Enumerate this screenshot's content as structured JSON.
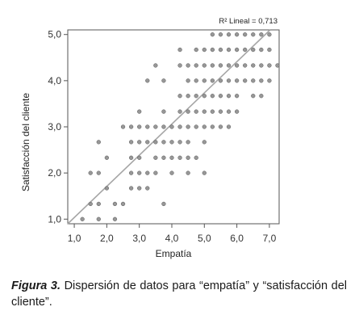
{
  "chart_data": {
    "type": "scatter",
    "xlabel": "Empatía",
    "ylabel": "Satisfacción del cliente",
    "xlim": [
      0.8,
      7.3
    ],
    "ylim": [
      0.9,
      5.1
    ],
    "x_ticks": [
      "1,0",
      "2,0",
      "3,0",
      "4,0",
      "5,0",
      "6,0",
      "7,0"
    ],
    "x_tick_values": [
      1,
      2,
      3,
      4,
      5,
      6,
      7
    ],
    "y_ticks": [
      "1,0",
      "2,0",
      "3,0",
      "4,0",
      "5,0"
    ],
    "y_tick_values": [
      1,
      2,
      3,
      4,
      5
    ],
    "annotation": "R² Lineal = 0,713",
    "fit_line": {
      "intercept": 0.36,
      "slope": 0.675
    },
    "point_color": "#8c8c8c",
    "line_color": "#a6a6a6",
    "points": [
      [
        1.25,
        1.0
      ],
      [
        1.75,
        1.0
      ],
      [
        2.25,
        1.0
      ],
      [
        1.5,
        1.33
      ],
      [
        1.75,
        1.33
      ],
      [
        2.25,
        1.33
      ],
      [
        2.5,
        1.33
      ],
      [
        3.75,
        1.33
      ],
      [
        2.0,
        1.67
      ],
      [
        2.75,
        1.67
      ],
      [
        3.0,
        1.67
      ],
      [
        3.25,
        1.67
      ],
      [
        1.5,
        2.0
      ],
      [
        1.75,
        2.0
      ],
      [
        2.75,
        2.0
      ],
      [
        3.0,
        2.0
      ],
      [
        3.25,
        2.0
      ],
      [
        3.5,
        2.0
      ],
      [
        4.0,
        2.0
      ],
      [
        4.5,
        2.0
      ],
      [
        5.0,
        2.0
      ],
      [
        2.0,
        2.33
      ],
      [
        2.75,
        2.33
      ],
      [
        3.0,
        2.33
      ],
      [
        3.5,
        2.33
      ],
      [
        3.75,
        2.33
      ],
      [
        4.0,
        2.33
      ],
      [
        4.25,
        2.33
      ],
      [
        4.5,
        2.33
      ],
      [
        4.75,
        2.33
      ],
      [
        1.75,
        2.67
      ],
      [
        2.75,
        2.67
      ],
      [
        3.0,
        2.67
      ],
      [
        3.25,
        2.67
      ],
      [
        3.5,
        2.67
      ],
      [
        3.75,
        2.67
      ],
      [
        4.0,
        2.67
      ],
      [
        4.25,
        2.67
      ],
      [
        4.5,
        2.67
      ],
      [
        5.0,
        2.67
      ],
      [
        2.5,
        3.0
      ],
      [
        2.75,
        3.0
      ],
      [
        3.0,
        3.0
      ],
      [
        3.25,
        3.0
      ],
      [
        3.5,
        3.0
      ],
      [
        3.75,
        3.0
      ],
      [
        4.0,
        3.0
      ],
      [
        4.25,
        3.0
      ],
      [
        4.5,
        3.0
      ],
      [
        4.75,
        3.0
      ],
      [
        5.0,
        3.0
      ],
      [
        5.25,
        3.0
      ],
      [
        5.5,
        3.0
      ],
      [
        5.75,
        3.0
      ],
      [
        3.0,
        3.33
      ],
      [
        3.75,
        3.33
      ],
      [
        4.25,
        3.33
      ],
      [
        4.5,
        3.33
      ],
      [
        4.75,
        3.33
      ],
      [
        5.0,
        3.33
      ],
      [
        5.25,
        3.33
      ],
      [
        5.5,
        3.33
      ],
      [
        5.75,
        3.33
      ],
      [
        6.0,
        3.33
      ],
      [
        4.25,
        3.67
      ],
      [
        4.5,
        3.67
      ],
      [
        4.75,
        3.67
      ],
      [
        5.0,
        3.67
      ],
      [
        5.25,
        3.67
      ],
      [
        5.5,
        3.67
      ],
      [
        5.75,
        3.67
      ],
      [
        6.0,
        3.67
      ],
      [
        6.5,
        3.67
      ],
      [
        6.75,
        3.67
      ],
      [
        3.25,
        4.0
      ],
      [
        3.75,
        4.0
      ],
      [
        4.5,
        4.0
      ],
      [
        4.75,
        4.0
      ],
      [
        5.0,
        4.0
      ],
      [
        5.25,
        4.0
      ],
      [
        5.5,
        4.0
      ],
      [
        5.75,
        4.0
      ],
      [
        6.0,
        4.0
      ],
      [
        6.25,
        4.0
      ],
      [
        6.5,
        4.0
      ],
      [
        6.75,
        4.0
      ],
      [
        7.0,
        4.0
      ],
      [
        3.5,
        4.33
      ],
      [
        4.25,
        4.33
      ],
      [
        4.5,
        4.33
      ],
      [
        4.75,
        4.33
      ],
      [
        5.0,
        4.33
      ],
      [
        5.25,
        4.33
      ],
      [
        5.5,
        4.33
      ],
      [
        5.75,
        4.33
      ],
      [
        6.0,
        4.33
      ],
      [
        6.25,
        4.33
      ],
      [
        6.5,
        4.33
      ],
      [
        6.75,
        4.33
      ],
      [
        7.0,
        4.33
      ],
      [
        7.25,
        4.33
      ],
      [
        4.25,
        4.67
      ],
      [
        4.75,
        4.67
      ],
      [
        5.0,
        4.67
      ],
      [
        5.25,
        4.67
      ],
      [
        5.5,
        4.67
      ],
      [
        5.75,
        4.67
      ],
      [
        6.0,
        4.67
      ],
      [
        6.25,
        4.67
      ],
      [
        6.5,
        4.67
      ],
      [
        6.75,
        4.67
      ],
      [
        7.0,
        4.67
      ],
      [
        5.25,
        5.0
      ],
      [
        5.5,
        5.0
      ],
      [
        5.75,
        5.0
      ],
      [
        6.0,
        5.0
      ],
      [
        6.25,
        5.0
      ],
      [
        6.5,
        5.0
      ],
      [
        6.75,
        5.0
      ],
      [
        7.0,
        5.0
      ]
    ]
  },
  "caption": {
    "label": "Figura 3.",
    "text": " Dispersión de datos para “empatía” y “satisfacción del cliente”."
  }
}
